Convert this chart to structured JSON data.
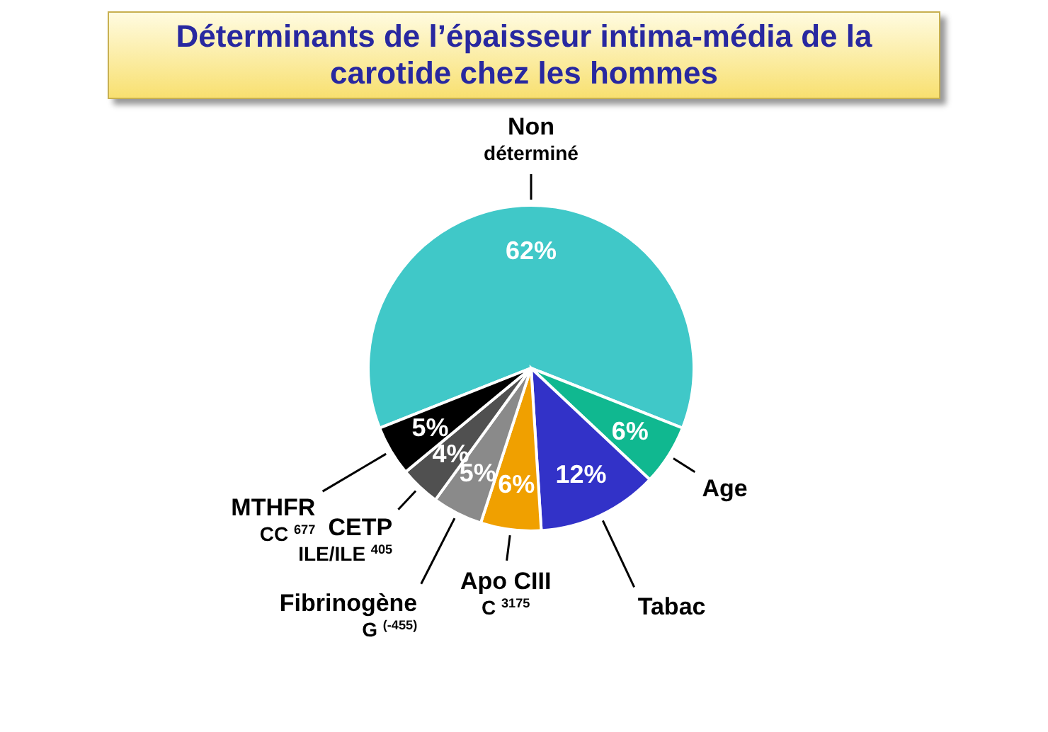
{
  "chart_data": {
    "type": "pie",
    "title": "Déterminants de l’épaisseur intima-média de la carotide chez les hommes",
    "categories": [
      "Non\ndéterminé",
      "Age",
      "Tabac",
      "Apo CIII\nC $^{3175}$",
      "Fibrinogène\nG $^{(-455)}$",
      "CETP\nILE/ILE $^{405}$",
      "MTHFR\nCC $^{677}$"
    ],
    "values": [
      62,
      6,
      12,
      6,
      5,
      4,
      5
    ],
    "colors": [
      "#40c8c8",
      "#10b890",
      "#3232c8",
      "#f0a000",
      "#8a8a8a",
      "#505050",
      "#000000"
    ],
    "value_labels": [
      "62%",
      "6%",
      "12%",
      "6%",
      "5%",
      "4%",
      "5%"
    ],
    "legend": false
  }
}
